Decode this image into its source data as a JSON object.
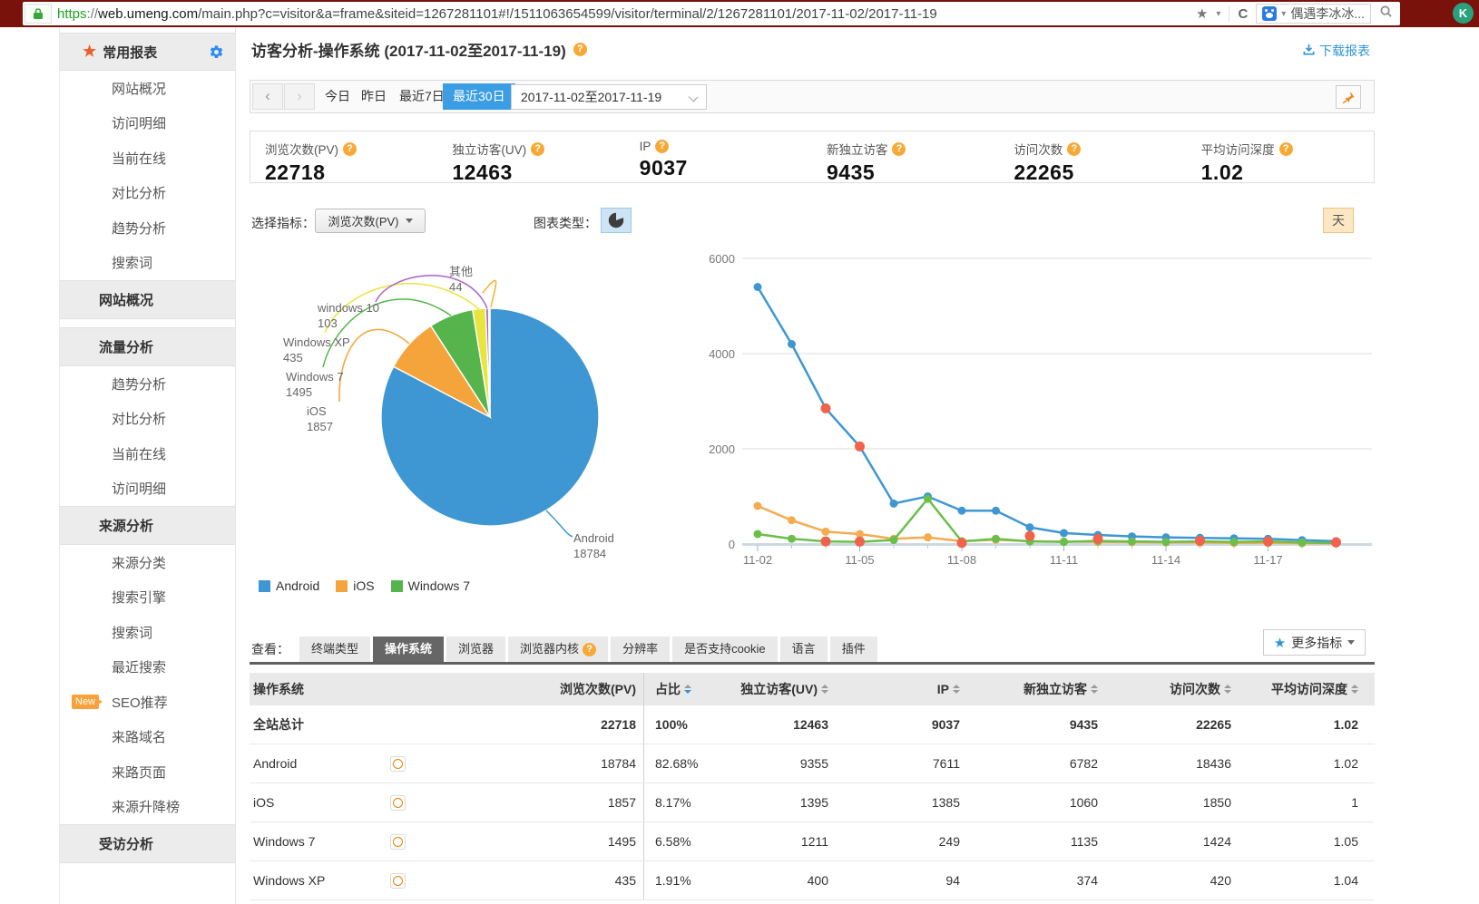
{
  "browser": {
    "scheme": "https",
    "sep": "://",
    "domain": "web.umeng.com",
    "path": "/main.php?c=visitor&a=frame&siteid=1267281101#!/1511063654599/visitor/terminal/2/1267281101/2017-11-02/2017-11-19",
    "search_text": "偶遇李冰冰...",
    "ext_badge": "K"
  },
  "sidebar": {
    "title": "常用报表",
    "items": [
      {
        "type": "item",
        "label": "网站概况"
      },
      {
        "type": "item",
        "label": "访问明细"
      },
      {
        "type": "item",
        "label": "当前在线"
      },
      {
        "type": "item",
        "label": "对比分析"
      },
      {
        "type": "item",
        "label": "趋势分析"
      },
      {
        "type": "item",
        "label": "搜索词"
      },
      {
        "type": "header",
        "label": "网站概况"
      },
      {
        "type": "header",
        "label": "流量分析",
        "gap": true
      },
      {
        "type": "item",
        "label": "趋势分析"
      },
      {
        "type": "item",
        "label": "对比分析"
      },
      {
        "type": "item",
        "label": "当前在线"
      },
      {
        "type": "item",
        "label": "访问明细"
      },
      {
        "type": "header",
        "label": "来源分析"
      },
      {
        "type": "item",
        "label": "来源分类"
      },
      {
        "type": "item",
        "label": "搜索引擎"
      },
      {
        "type": "item",
        "label": "搜索词"
      },
      {
        "type": "item",
        "label": "最近搜索"
      },
      {
        "type": "item",
        "label": "SEO推荐",
        "badge": "New"
      },
      {
        "type": "item",
        "label": "来路域名"
      },
      {
        "type": "item",
        "label": "来路页面"
      },
      {
        "type": "item",
        "label": "来源升降榜"
      },
      {
        "type": "header",
        "label": "受访分析"
      }
    ]
  },
  "page_header": {
    "title": "访客分析-操作系统 (2017-11-02至2017-11-19)",
    "download": "下载报表"
  },
  "datebar": {
    "presets": [
      "今日",
      "昨日",
      "最近7日"
    ],
    "active_preset": "最近30日",
    "range": "2017-11-02至2017-11-19"
  },
  "stats": [
    {
      "label": "浏览次数(PV)",
      "value": "22718"
    },
    {
      "label": "独立访客(UV)",
      "value": "12463"
    },
    {
      "label": "IP",
      "value": "9037"
    },
    {
      "label": "新独立访客",
      "value": "9435"
    },
    {
      "label": "访问次数",
      "value": "22265"
    },
    {
      "label": "平均访问深度",
      "value": "1.02"
    }
  ],
  "controls": {
    "metric_label": "选择指标：",
    "metric_value": "浏览次数(PV)",
    "chart_type_label": "图表类型：",
    "period_button": "天"
  },
  "legend": [
    {
      "label": "Android",
      "color": "#3e97d3"
    },
    {
      "label": "iOS",
      "color": "#f5a43c"
    },
    {
      "label": "Windows 7",
      "color": "#55b54c"
    }
  ],
  "chart_data": [
    {
      "type": "pie",
      "title": "浏览次数(PV)按操作系统",
      "labels": [
        "Android",
        "iOS",
        "Windows 7",
        "Windows XP",
        "windows 10",
        "其他"
      ],
      "values": [
        18784,
        1857,
        1495,
        435,
        103,
        44
      ],
      "colors": [
        "#3e97d3",
        "#f5a43c",
        "#55b54c",
        "#e9e53f",
        "#a862c8",
        "#f7b32b"
      ]
    },
    {
      "type": "line",
      "x": [
        "11-02",
        "11-03",
        "11-04",
        "11-05",
        "11-06",
        "11-07",
        "11-08",
        "11-09",
        "11-10",
        "11-11",
        "11-12",
        "11-13",
        "11-14",
        "11-15",
        "11-16",
        "11-17",
        "11-18",
        "11-19"
      ],
      "series": [
        {
          "name": "Android",
          "color": "#3e97d3",
          "values": [
            5400,
            4200,
            2850,
            2050,
            850,
            1000,
            700,
            700,
            350,
            230,
            190,
            160,
            140,
            130,
            120,
            110,
            80,
            60
          ]
        },
        {
          "name": "iOS",
          "color": "#f5ab4f",
          "values": [
            800,
            500,
            260,
            210,
            110,
            140,
            60,
            90,
            60,
            50,
            45,
            40,
            35,
            30,
            25,
            22,
            18,
            12
          ]
        },
        {
          "name": "Windows 7",
          "color": "#6abf4b",
          "values": [
            210,
            110,
            55,
            45,
            85,
            950,
            55,
            110,
            55,
            45,
            65,
            55,
            45,
            55,
            45,
            55,
            30,
            20
          ]
        }
      ],
      "extra_red_points": {
        "color": "#f2614a",
        "points": [
          [
            2,
            2850
          ],
          [
            3,
            2050
          ],
          [
            2,
            55
          ],
          [
            3,
            50
          ],
          [
            6,
            25
          ],
          [
            8,
            170
          ],
          [
            10,
            110
          ],
          [
            13,
            70
          ],
          [
            15,
            55
          ],
          [
            17,
            35
          ]
        ]
      },
      "ylim": [
        0,
        6000
      ],
      "yticks": [
        0,
        2000,
        4000,
        6000
      ],
      "xtick_every": 3,
      "grid": true,
      "legend_position": "below-pie"
    }
  ],
  "tabs": {
    "view_label": "查看：",
    "items": [
      {
        "label": "终端类型"
      },
      {
        "label": "操作系统",
        "active": true
      },
      {
        "label": "浏览器"
      },
      {
        "label": "浏览器内核",
        "help": true
      },
      {
        "label": "分辨率"
      },
      {
        "label": "是否支持cookie"
      },
      {
        "label": "语言"
      },
      {
        "label": "插件"
      }
    ],
    "more": "更多指标"
  },
  "table": {
    "columns": [
      {
        "label": "操作系统",
        "align": "left"
      },
      {
        "label": "浏览次数(PV)",
        "align": "right"
      },
      {
        "label": "占比",
        "align": "left",
        "sort": true,
        "sort_active": true
      },
      {
        "label": "独立访客(UV)",
        "align": "right",
        "sort": true
      },
      {
        "label": "IP",
        "align": "right",
        "sort": true
      },
      {
        "label": "新独立访客",
        "align": "right",
        "sort": true
      },
      {
        "label": "访问次数",
        "align": "right",
        "sort": true
      },
      {
        "label": "平均访问深度",
        "align": "right",
        "sort": true
      }
    ],
    "rows": [
      {
        "name": "全站总计",
        "total": true,
        "icon": false,
        "values": [
          "22718",
          "100%",
          "12463",
          "9037",
          "9435",
          "22265",
          "1.02"
        ]
      },
      {
        "name": "Android",
        "icon": true,
        "values": [
          "18784",
          "82.68%",
          "9355",
          "7611",
          "6782",
          "18436",
          "1.02"
        ]
      },
      {
        "name": "iOS",
        "icon": true,
        "values": [
          "1857",
          "8.17%",
          "1395",
          "1385",
          "1060",
          "1850",
          "1"
        ]
      },
      {
        "name": "Windows 7",
        "icon": true,
        "values": [
          "1495",
          "6.58%",
          "1211",
          "249",
          "1135",
          "1424",
          "1.05"
        ]
      },
      {
        "name": "Windows XP",
        "icon": true,
        "values": [
          "435",
          "1.91%",
          "400",
          "94",
          "374",
          "420",
          "1.04"
        ]
      }
    ]
  }
}
